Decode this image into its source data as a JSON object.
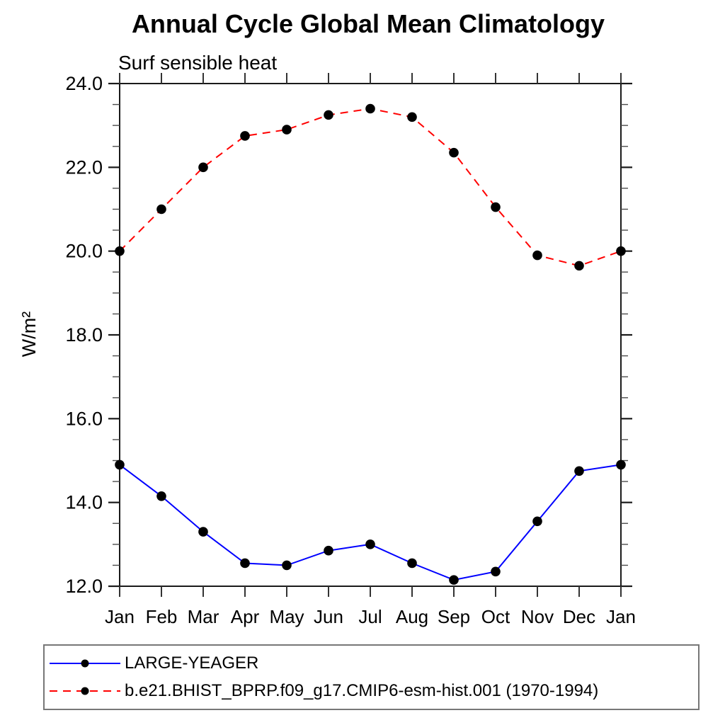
{
  "chart_data": {
    "type": "line",
    "title": "Annual Cycle Global Mean Climatology",
    "subtitle": "Surf sensible heat",
    "ylabel": "W/m²",
    "xlabel": "",
    "categories": [
      "Jan",
      "Feb",
      "Mar",
      "Apr",
      "May",
      "Jun",
      "Jul",
      "Aug",
      "Sep",
      "Oct",
      "Nov",
      "Dec",
      "Jan"
    ],
    "ylim": [
      12.0,
      24.0
    ],
    "ytick_major_step": 2.0,
    "ytick_minor_step": 0.5,
    "ytick_labels": [
      "12.0",
      "14.0",
      "16.0",
      "18.0",
      "20.0",
      "22.0",
      "24.0"
    ],
    "grid": false,
    "legend_position": "bottom-left-box",
    "marker_color": "#000000",
    "series": [
      {
        "name": "LARGE-YEAGER",
        "color": "#0000ff",
        "line_style": "solid",
        "marker": "filled-circle",
        "values": [
          14.9,
          14.15,
          13.3,
          12.55,
          12.5,
          12.85,
          13.0,
          12.55,
          12.15,
          12.35,
          13.55,
          14.75,
          14.9
        ]
      },
      {
        "name": "b.e21.BHIST_BPRP.f09_g17.CMIP6-esm-hist.001 (1970-1994)",
        "color": "#ff0000",
        "line_style": "dashed",
        "marker": "filled-circle",
        "values": [
          20.0,
          21.0,
          22.0,
          22.75,
          22.9,
          23.25,
          23.4,
          23.2,
          22.35,
          21.05,
          19.9,
          19.65,
          20.0
        ]
      }
    ]
  }
}
